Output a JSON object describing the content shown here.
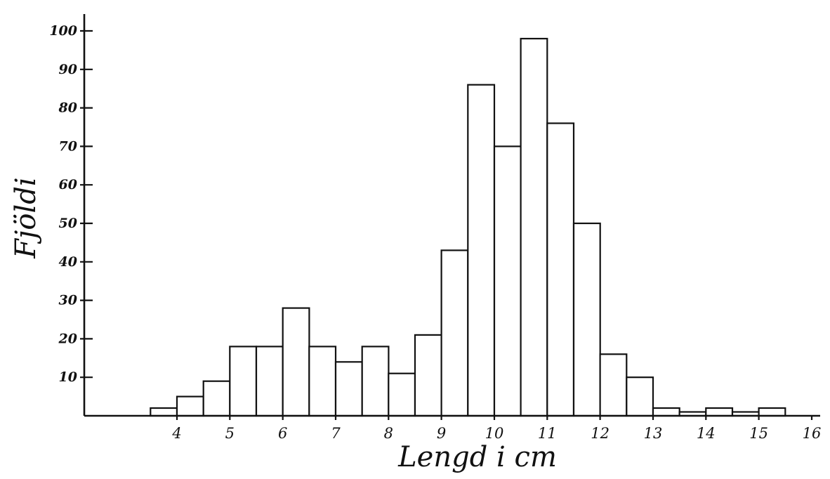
{
  "chart_data": {
    "type": "bar",
    "title": "",
    "xlabel": "Lengd i cm",
    "ylabel": "Fjöldi",
    "x_ticks": [
      "4",
      "5",
      "6",
      "7",
      "8",
      "9",
      "10",
      "11",
      "12",
      "13",
      "14",
      "15",
      "16"
    ],
    "y_ticks": [
      "10",
      "20",
      "30",
      "40",
      "50",
      "60",
      "70",
      "80",
      "90",
      "100"
    ],
    "xlim": [
      1.5,
      16.5
    ],
    "ylim": [
      0,
      100
    ],
    "bin_width": 0.5,
    "bins": [
      {
        "x_start": 3.5,
        "x_end": 4.0,
        "value": 2
      },
      {
        "x_start": 4.0,
        "x_end": 4.5,
        "value": 5
      },
      {
        "x_start": 4.5,
        "x_end": 5.0,
        "value": 9
      },
      {
        "x_start": 5.0,
        "x_end": 5.5,
        "value": 18
      },
      {
        "x_start": 5.5,
        "x_end": 6.0,
        "value": 18
      },
      {
        "x_start": 6.0,
        "x_end": 6.5,
        "value": 28
      },
      {
        "x_start": 6.5,
        "x_end": 7.0,
        "value": 18
      },
      {
        "x_start": 7.0,
        "x_end": 7.5,
        "value": 14
      },
      {
        "x_start": 7.5,
        "x_end": 8.0,
        "value": 18
      },
      {
        "x_start": 8.0,
        "x_end": 8.5,
        "value": 11
      },
      {
        "x_start": 8.5,
        "x_end": 9.0,
        "value": 21
      },
      {
        "x_start": 9.0,
        "x_end": 9.5,
        "value": 43
      },
      {
        "x_start": 9.5,
        "x_end": 10.0,
        "value": 86
      },
      {
        "x_start": 10.0,
        "x_end": 10.5,
        "value": 70
      },
      {
        "x_start": 10.5,
        "x_end": 11.0,
        "value": 98
      },
      {
        "x_start": 11.0,
        "x_end": 11.5,
        "value": 76
      },
      {
        "x_start": 11.5,
        "x_end": 12.0,
        "value": 50
      },
      {
        "x_start": 12.0,
        "x_end": 12.5,
        "value": 16
      },
      {
        "x_start": 12.5,
        "x_end": 13.0,
        "value": 10
      },
      {
        "x_start": 13.0,
        "x_end": 13.5,
        "value": 2
      },
      {
        "x_start": 13.5,
        "x_end": 14.0,
        "value": 1
      },
      {
        "x_start": 14.0,
        "x_end": 14.5,
        "value": 2
      },
      {
        "x_start": 14.5,
        "x_end": 15.0,
        "value": 1
      },
      {
        "x_start": 15.0,
        "x_end": 15.5,
        "value": 2
      }
    ],
    "grid": false,
    "legend": "none",
    "colors": {
      "ink": "#111111",
      "bar_fill": "#ffffff",
      "background": "#ffffff"
    }
  }
}
